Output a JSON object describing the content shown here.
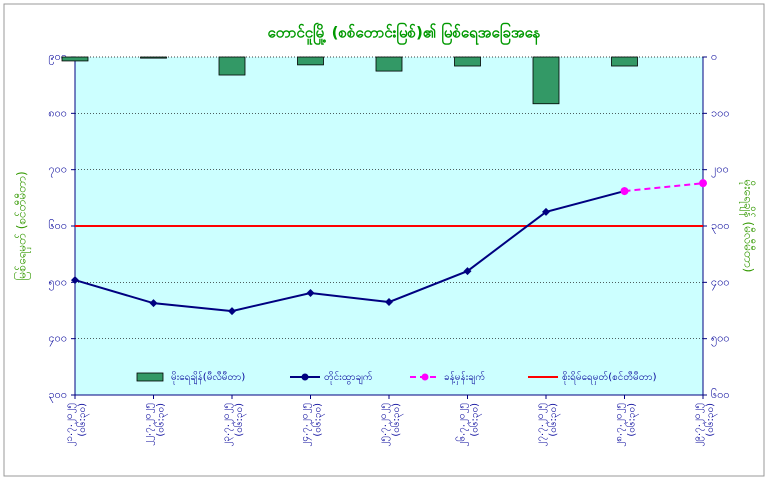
{
  "chart_data": {
    "type": "combo",
    "title": "တောင်ငူမြို့ (စစ်တောင်းမြစ်)၏ မြစ်ရေအခြေအနေ",
    "y_label": "မြစ်ရေမှတ် (စင်တီမီတာ)",
    "y2_label": "မိုးရေချိန် (မီလီမီတာ)",
    "categories": [
      [
        "၂၁.၇.၂၀၂၅",
        "(၀၆:၃၀)"
      ],
      [
        "၂၂.၇.၂၀၂၅",
        "(၀၆:၃၀)"
      ],
      [
        "၂၃.၇.၂၀၂၅",
        "(၀၆:၃၀)"
      ],
      [
        "၂၄.၇.၂၀၂၅",
        "(၀၆:၃၀)"
      ],
      [
        "၂၅.၇.၂၀၂၅",
        "(၀၆:၃၀)"
      ],
      [
        "၂၆.၇.၂၀၂၅",
        "(၀၆:၃၀)"
      ],
      [
        "၂၇.၇.၂၀၂၅",
        "(၀၆:၃၀)"
      ],
      [
        "၂၈.၇.၂၀၂၅",
        "(၀၆:၃၀)"
      ],
      [
        "၂၉.၇.၂၀၂၅",
        "(၀၆:၃၀)"
      ]
    ],
    "series": [
      {
        "name": "မိုးရေချိန်(မီလီမီတာ)",
        "type": "bar",
        "axis": "y2",
        "color": "#339966",
        "values": [
          7,
          2,
          32,
          14,
          25,
          16,
          83,
          16,
          null
        ]
      },
      {
        "name": "တိုင်းထွာချက်",
        "type": "line",
        "color": "#000080",
        "values": [
          504,
          463,
          449,
          481,
          465,
          520,
          625,
          662,
          null
        ]
      },
      {
        "name": "ခန့်မှန်းချက်",
        "type": "dashed-line",
        "color": "#ff00ff",
        "values": [
          null,
          null,
          null,
          null,
          null,
          null,
          null,
          662,
          676
        ]
      }
    ],
    "danger_level": {
      "name": "စိုးရိမ်ရေမှတ်(စင်တီမီတာ)",
      "value": 600,
      "color": "#ff0000"
    },
    "ylim": [
      300,
      900
    ],
    "yticks": [
      {
        "value": 300,
        "label": "၃၀၀"
      },
      {
        "value": 400,
        "label": "၄၀၀"
      },
      {
        "value": 500,
        "label": "၅၀၀"
      },
      {
        "value": 600,
        "label": "၆၀၀"
      },
      {
        "value": 700,
        "label": "၇၀၀"
      },
      {
        "value": 800,
        "label": "၈၀၀"
      },
      {
        "value": 900,
        "label": "၉၀၀"
      }
    ],
    "y2lim": [
      0,
      600
    ],
    "y2_inverted": true,
    "y2ticks": [
      {
        "value": 0,
        "label": "၀"
      },
      {
        "value": 100,
        "label": "၁၀၀"
      },
      {
        "value": 200,
        "label": "၂၀၀"
      },
      {
        "value": 300,
        "label": "၃၀၀"
      },
      {
        "value": 400,
        "label": "၄၀၀"
      },
      {
        "value": 500,
        "label": "၅၀၀"
      },
      {
        "value": 600,
        "label": "၆၀၀"
      }
    ],
    "grid": true,
    "background": "#ccffff"
  }
}
